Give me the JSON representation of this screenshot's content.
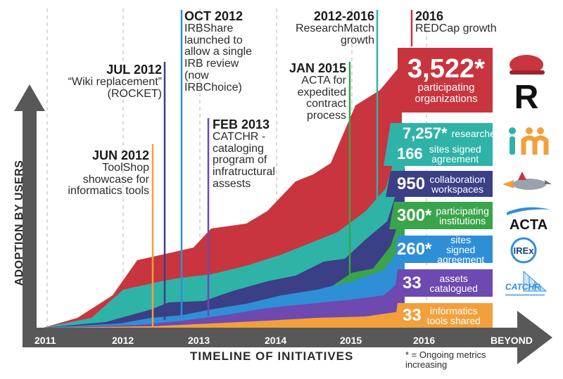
{
  "chart_data": {
    "type": "area",
    "stacked": true,
    "x": [
      "2011",
      "2012",
      "2013",
      "2014",
      "2015",
      "2016"
    ],
    "xlabel": "TIMELINE OF INITIATIVES",
    "ylabel": "ADOPTION BY USERS",
    "x_ticks": [
      "2011",
      "2012",
      "2013",
      "2014",
      "2015",
      "2016",
      "BEYOND"
    ],
    "series_colors": [
      "#f2a03b",
      "#6d49b0",
      "#2f8fd6",
      "#3b3f85",
      "#2fb3a7",
      "#c8353f"
    ]
  },
  "annotations": [
    {
      "heading": "JUN 2012",
      "text": "ToolShop showcase for informatics tools"
    },
    {
      "heading": "JUL 2012",
      "text": "“Wiki replacement” (ROCKET)"
    },
    {
      "heading": "OCT 2012",
      "text": "IRBShare launched to allow a single IRB review (now IRBChoice)"
    },
    {
      "heading": "FEB 2013",
      "text": "CATCHR - cataloging program of infratructural assests"
    },
    {
      "heading": "JAN 2015",
      "text": "ACTA for expedited contract process"
    },
    {
      "heading": "2012-2016",
      "text": "ResearchMatch growth"
    },
    {
      "heading": "2016",
      "text": "REDCap growth"
    }
  ],
  "metrics": [
    {
      "value": "3,522*",
      "label": "participating organizations",
      "color": "#c8353f",
      "logo": "R"
    },
    {
      "value": "7,257*",
      "label": "researchers",
      "color": "#2fb3a7"
    },
    {
      "value": "166",
      "label": "sites signed agreement",
      "color": "#2fb3a7",
      "logo": "rm"
    },
    {
      "value": "950",
      "label": "collaboration workspaces",
      "color": "#3b3f85",
      "logo": "rocket"
    },
    {
      "value": "300*",
      "label": "participating institutions",
      "color": "#3aa44a",
      "logo": "ACTA"
    },
    {
      "value": "260*",
      "label": "sites signed agreement",
      "color": "#2f8fd6",
      "logo": "IREx"
    },
    {
      "value": "33",
      "label": "assets catalogued",
      "color": "#6d49b0",
      "logo": "CATCHR"
    },
    {
      "value": "33",
      "label": "informatics tools shared",
      "color": "#f2a03b"
    }
  ],
  "footnote": "* = Ongoing metrics increasing"
}
